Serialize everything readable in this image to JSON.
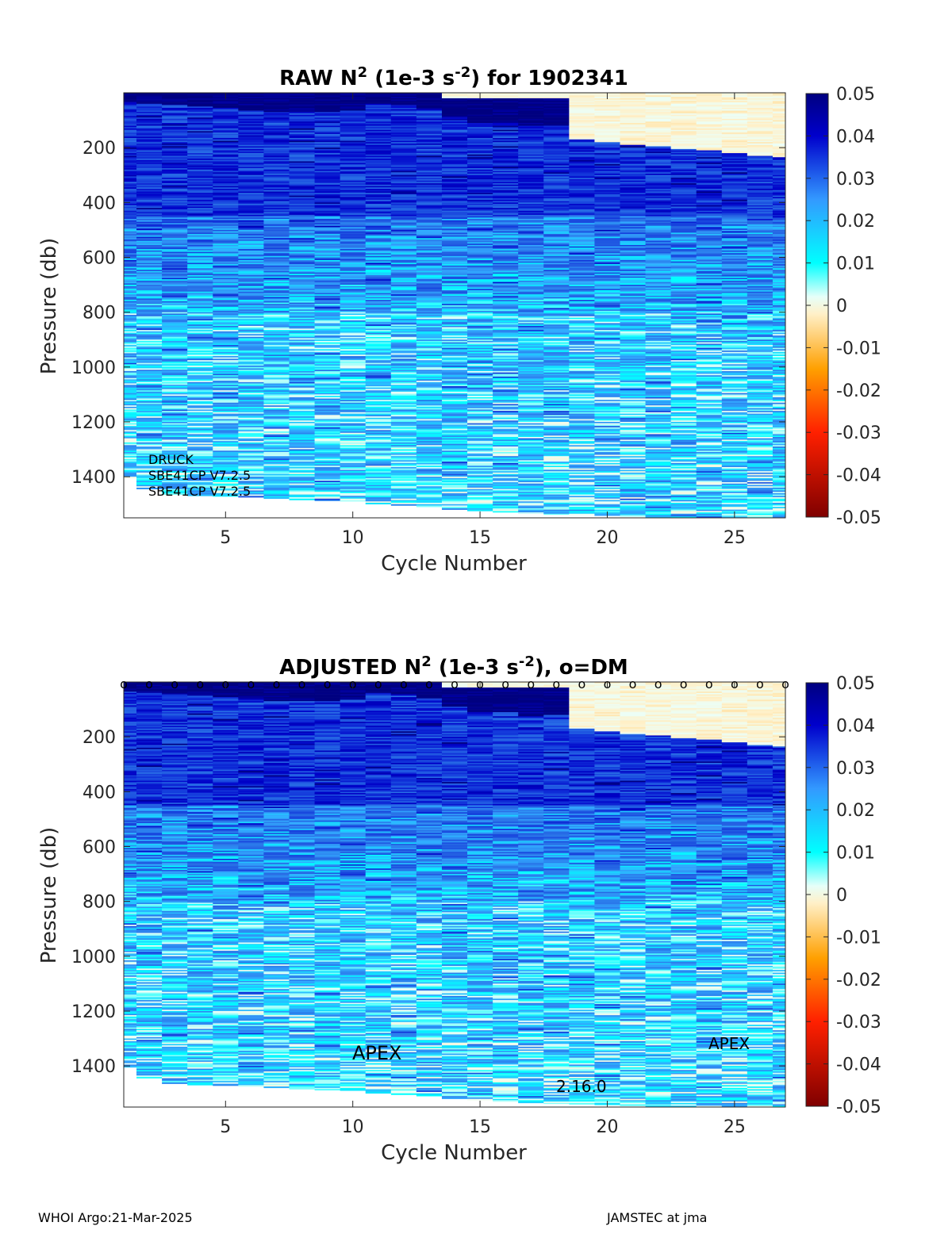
{
  "colors": {
    "colormap": [
      "#7f0000",
      "#ff0000",
      "#ff8000",
      "#fff0c8",
      "#f5fff5",
      "#00ffff",
      "#3399ff",
      "#0000cc",
      "#000080"
    ]
  },
  "chart_data": [
    {
      "type": "heatmap",
      "title_main": "RAW N",
      "title_sup1": "2",
      "title_mid": " (1e-3 s",
      "title_sup2": "-2",
      "title_end": ") for 1902341",
      "xlabel": "Cycle Number",
      "ylabel": "Pressure (db)",
      "xlim": [
        1,
        27
      ],
      "ylim": [
        1550,
        0
      ],
      "xticks": [
        5,
        10,
        15,
        20,
        25
      ],
      "yticks": [
        200,
        400,
        600,
        800,
        1000,
        1200,
        1400
      ],
      "clim": [
        -0.05,
        0.05
      ],
      "cticks": [
        "0.05",
        "0.04",
        "0.03",
        "0.02",
        "0.01",
        "0",
        "-0.01",
        "-0.02",
        "-0.03",
        "-0.04",
        "-0.05"
      ],
      "cycles": [
        1,
        2,
        3,
        4,
        5,
        6,
        7,
        8,
        9,
        10,
        11,
        12,
        13,
        14,
        15,
        16,
        17,
        18,
        19,
        20,
        21,
        22,
        23,
        24,
        25,
        26,
        27
      ],
      "max_pressure": [
        1405,
        1445,
        1465,
        1470,
        1472,
        1475,
        1480,
        1485,
        1488,
        1490,
        1500,
        1505,
        1510,
        1520,
        1525,
        1530,
        1535,
        1538,
        1540,
        1542,
        1545,
        1548,
        1550,
        1550,
        1550,
        1550,
        1550
      ],
      "mixed_layer_depth": [
        5,
        10,
        15,
        20,
        25,
        30,
        40,
        40,
        40,
        35,
        10,
        15,
        30,
        60,
        80,
        80,
        90,
        90,
        0,
        0,
        0,
        0,
        0,
        0,
        0,
        0,
        0
      ],
      "annotations": [
        "DRUCK",
        "SBE41CP V7.2.5",
        "SBE41CP V7.2.5"
      ]
    },
    {
      "type": "heatmap",
      "title_main": "ADJUSTED N",
      "title_sup1": "2",
      "title_mid": " (1e-3 s",
      "title_sup2": "-2",
      "title_end": "), o=DM",
      "xlabel": "Cycle Number",
      "ylabel": "Pressure (db)",
      "xlim": [
        1,
        27
      ],
      "ylim": [
        1550,
        0
      ],
      "xticks": [
        5,
        10,
        15,
        20,
        25
      ],
      "yticks": [
        200,
        400,
        600,
        800,
        1000,
        1200,
        1400
      ],
      "clim": [
        -0.05,
        0.05
      ],
      "cticks": [
        "0.05",
        "0.04",
        "0.03",
        "0.02",
        "0.01",
        "0",
        "-0.01",
        "-0.02",
        "-0.03",
        "-0.04",
        "-0.05"
      ],
      "dm_marker": "o",
      "dm_cycles": [
        1,
        2,
        3,
        4,
        5,
        6,
        7,
        8,
        9,
        10,
        11,
        12,
        13,
        14,
        15,
        16,
        17,
        18,
        19,
        20,
        21,
        22,
        23,
        24,
        25,
        26,
        27
      ],
      "annotations": [
        "APEX",
        "2.16.0",
        "APEX"
      ]
    }
  ],
  "footer": {
    "left": "WHOI Argo:21-Mar-2025",
    "right": "JAMSTEC at jma"
  }
}
